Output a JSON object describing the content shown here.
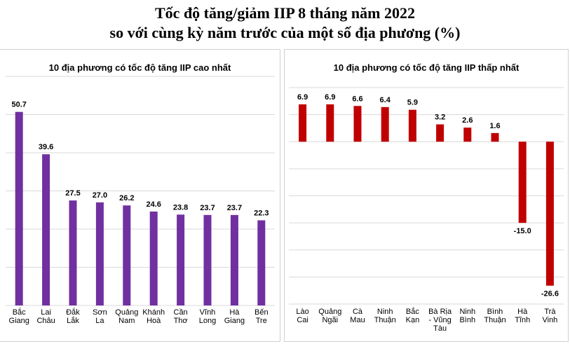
{
  "title_line1": "Tốc độ tăng/giảm IIP 8 tháng năm 2022",
  "title_line2": "so với cùng kỳ năm trước của một số địa phương (%)",
  "colors": {
    "left_bar": "#7030a0",
    "right_bar": "#c00000",
    "grid": "#d9d9d9"
  },
  "chart_data": [
    {
      "type": "bar",
      "title": "10 địa phương có tốc độ tăng IIP cao nhất",
      "categories": [
        [
          "Bắc",
          "Giang"
        ],
        [
          "Lai",
          "Châu"
        ],
        [
          "Đắk",
          "Lắk"
        ],
        [
          "Sơn",
          "La"
        ],
        [
          "Quảng",
          "Nam"
        ],
        [
          "Khánh",
          "Hoà"
        ],
        [
          "Cần",
          "Thơ"
        ],
        [
          "Vĩnh",
          "Long"
        ],
        [
          "Hà",
          "Giang"
        ],
        [
          "Bến",
          "Tre"
        ]
      ],
      "values": [
        50.7,
        39.6,
        27.5,
        27.0,
        26.2,
        24.6,
        23.8,
        23.7,
        23.7,
        22.3
      ],
      "value_labels": [
        "50.7",
        "39.6",
        "27.5",
        "27.0",
        "26.2",
        "24.6",
        "23.8",
        "23.7",
        "23.7",
        "22.3"
      ],
      "ylim": [
        0,
        60
      ],
      "grid": true
    },
    {
      "type": "bar",
      "title": "10 địa phương có tốc độ tăng IIP thấp nhất",
      "categories": [
        [
          "Lào",
          "Cai"
        ],
        [
          "Quảng",
          "Ngãi"
        ],
        [
          "Cà",
          "Mau"
        ],
        [
          "Ninh",
          "Thuận"
        ],
        [
          "Bắc",
          "Kạn"
        ],
        [
          "Bà Rịa",
          "- Vũng",
          "Tàu"
        ],
        [
          "Ninh",
          "Bình"
        ],
        [
          "Bình",
          "Thuận"
        ],
        [
          "Hà",
          "Tĩnh"
        ],
        [
          "Trà",
          "Vinh"
        ]
      ],
      "values": [
        6.9,
        6.9,
        6.6,
        6.4,
        5.9,
        3.2,
        2.6,
        1.6,
        -15.0,
        -26.6
      ],
      "value_labels": [
        "6.9",
        "6.9",
        "6.6",
        "6.4",
        "5.9",
        "3.2",
        "2.6",
        "1.6",
        "-15.0",
        "-26.6"
      ],
      "ylim": [
        -30,
        10
      ],
      "grid": true
    }
  ]
}
